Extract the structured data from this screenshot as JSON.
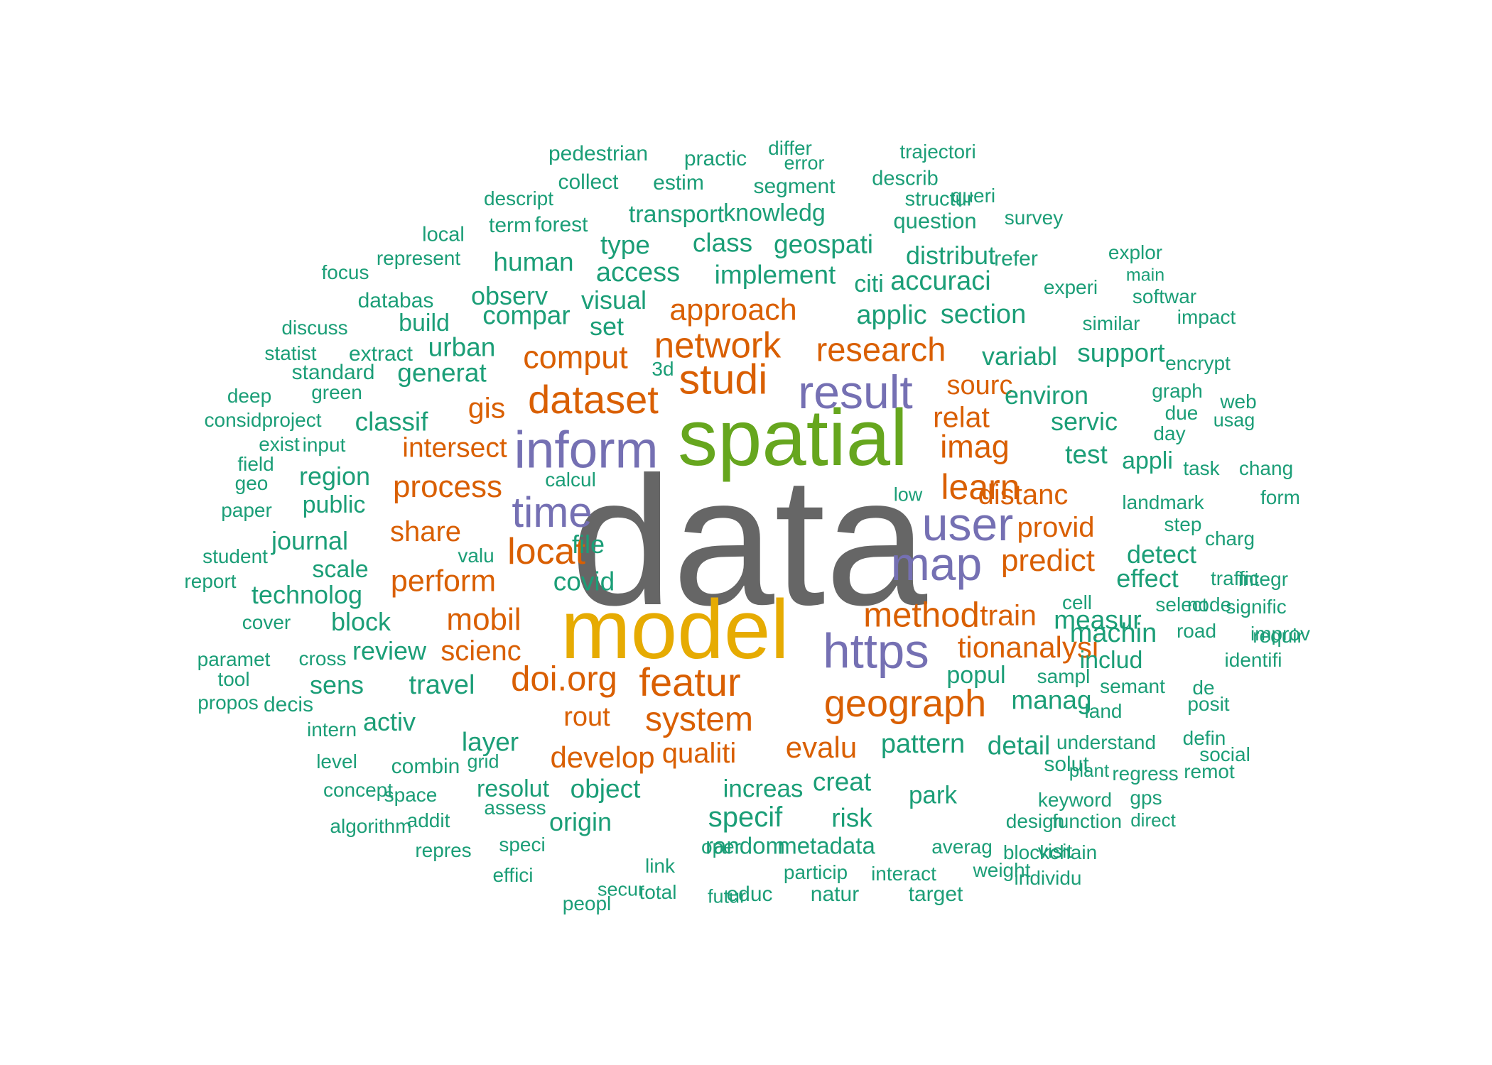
{
  "colors": {
    "gray": "#666666",
    "green": "#66a61e",
    "gold": "#e6ab02",
    "purple": "#7570b3",
    "orange": "#d95f02",
    "teal": "#1b9e77"
  },
  "words": [
    {
      "text": "data",
      "color": "gray"
    },
    {
      "text": "spatial",
      "color": "green"
    },
    {
      "text": "model",
      "color": "gold"
    },
    {
      "text": "inform",
      "color": "purple"
    },
    {
      "text": "result",
      "color": "purple"
    },
    {
      "text": "user",
      "color": "purple"
    },
    {
      "text": "map",
      "color": "purple"
    },
    {
      "text": "https",
      "color": "purple"
    },
    {
      "text": "time",
      "color": "purple"
    },
    {
      "text": "dataset",
      "color": "orange"
    },
    {
      "text": "studi",
      "color": "orange"
    },
    {
      "text": "network",
      "color": "orange"
    },
    {
      "text": "research",
      "color": "orange"
    },
    {
      "text": "approach",
      "color": "orange"
    },
    {
      "text": "comput",
      "color": "orange"
    },
    {
      "text": "gis",
      "color": "orange"
    },
    {
      "text": "intersect",
      "color": "orange"
    },
    {
      "text": "process",
      "color": "orange"
    },
    {
      "text": "learn",
      "color": "orange"
    },
    {
      "text": "imag",
      "color": "orange"
    },
    {
      "text": "relat",
      "color": "orange"
    },
    {
      "text": "sourc",
      "color": "orange"
    },
    {
      "text": "distanc",
      "color": "orange"
    },
    {
      "text": "provid",
      "color": "orange"
    },
    {
      "text": "predict",
      "color": "orange"
    },
    {
      "text": "locat",
      "color": "orange"
    },
    {
      "text": "share",
      "color": "orange"
    },
    {
      "text": "perform",
      "color": "orange"
    },
    {
      "text": "method",
      "color": "orange"
    },
    {
      "text": "train",
      "color": "orange"
    },
    {
      "text": "tionanalysi",
      "color": "orange"
    },
    {
      "text": "mobil",
      "color": "orange"
    },
    {
      "text": "scienc",
      "color": "orange"
    },
    {
      "text": "doi.org",
      "color": "orange"
    },
    {
      "text": "featur",
      "color": "orange"
    },
    {
      "text": "geograph",
      "color": "orange"
    },
    {
      "text": "system",
      "color": "orange"
    },
    {
      "text": "rout",
      "color": "orange"
    },
    {
      "text": "develop",
      "color": "orange"
    },
    {
      "text": "qualiti",
      "color": "orange"
    },
    {
      "text": "evalu",
      "color": "orange"
    },
    {
      "text": "pedestrian",
      "color": "teal"
    },
    {
      "text": "practic",
      "color": "teal"
    },
    {
      "text": "differ",
      "color": "teal"
    },
    {
      "text": "error",
      "color": "teal"
    },
    {
      "text": "trajectori",
      "color": "teal"
    },
    {
      "text": "collect",
      "color": "teal"
    },
    {
      "text": "estim",
      "color": "teal"
    },
    {
      "text": "segment",
      "color": "teal"
    },
    {
      "text": "describ",
      "color": "teal"
    },
    {
      "text": "descript",
      "color": "teal"
    },
    {
      "text": "structur",
      "color": "teal"
    },
    {
      "text": "queri",
      "color": "teal"
    },
    {
      "text": "transport",
      "color": "teal"
    },
    {
      "text": "knowledg",
      "color": "teal"
    },
    {
      "text": "question",
      "color": "teal"
    },
    {
      "text": "survey",
      "color": "teal"
    },
    {
      "text": "local",
      "color": "teal"
    },
    {
      "text": "term",
      "color": "teal"
    },
    {
      "text": "forest",
      "color": "teal"
    },
    {
      "text": "class",
      "color": "teal"
    },
    {
      "text": "geospati",
      "color": "teal"
    },
    {
      "text": "type",
      "color": "teal"
    },
    {
      "text": "distribut",
      "color": "teal"
    },
    {
      "text": "refer",
      "color": "teal"
    },
    {
      "text": "explor",
      "color": "teal"
    },
    {
      "text": "represent",
      "color": "teal"
    },
    {
      "text": "human",
      "color": "teal"
    },
    {
      "text": "access",
      "color": "teal"
    },
    {
      "text": "implement",
      "color": "teal"
    },
    {
      "text": "citi",
      "color": "teal"
    },
    {
      "text": "accuraci",
      "color": "teal"
    },
    {
      "text": "experi",
      "color": "teal"
    },
    {
      "text": "main",
      "color": "teal"
    },
    {
      "text": "focus",
      "color": "teal"
    },
    {
      "text": "databas",
      "color": "teal"
    },
    {
      "text": "observ",
      "color": "teal"
    },
    {
      "text": "visual",
      "color": "teal"
    },
    {
      "text": "softwar",
      "color": "teal"
    },
    {
      "text": "impact",
      "color": "teal"
    },
    {
      "text": "discuss",
      "color": "teal"
    },
    {
      "text": "build",
      "color": "teal"
    },
    {
      "text": "compar",
      "color": "teal"
    },
    {
      "text": "set",
      "color": "teal"
    },
    {
      "text": "applic",
      "color": "teal"
    },
    {
      "text": "section",
      "color": "teal"
    },
    {
      "text": "similar",
      "color": "teal"
    },
    {
      "text": "statist",
      "color": "teal"
    },
    {
      "text": "extract",
      "color": "teal"
    },
    {
      "text": "urban",
      "color": "teal"
    },
    {
      "text": "variabl",
      "color": "teal"
    },
    {
      "text": "support",
      "color": "teal"
    },
    {
      "text": "encrypt",
      "color": "teal"
    },
    {
      "text": "standard",
      "color": "teal"
    },
    {
      "text": "generat",
      "color": "teal"
    },
    {
      "text": "3d",
      "color": "teal"
    },
    {
      "text": "graph",
      "color": "teal"
    },
    {
      "text": "web",
      "color": "teal"
    },
    {
      "text": "deep",
      "color": "teal"
    },
    {
      "text": "green",
      "color": "teal"
    },
    {
      "text": "environ",
      "color": "teal"
    },
    {
      "text": "due",
      "color": "teal"
    },
    {
      "text": "usag",
      "color": "teal"
    },
    {
      "text": "considproject",
      "color": "teal"
    },
    {
      "text": "classif",
      "color": "teal"
    },
    {
      "text": "servic",
      "color": "teal"
    },
    {
      "text": "day",
      "color": "teal"
    },
    {
      "text": "exist",
      "color": "teal"
    },
    {
      "text": "input",
      "color": "teal"
    },
    {
      "text": "test",
      "color": "teal"
    },
    {
      "text": "appli",
      "color": "teal"
    },
    {
      "text": "task",
      "color": "teal"
    },
    {
      "text": "chang",
      "color": "teal"
    },
    {
      "text": "field",
      "color": "teal"
    },
    {
      "text": "region",
      "color": "teal"
    },
    {
      "text": "calcul",
      "color": "teal"
    },
    {
      "text": "geo",
      "color": "teal"
    },
    {
      "text": "low",
      "color": "teal"
    },
    {
      "text": "form",
      "color": "teal"
    },
    {
      "text": "public",
      "color": "teal"
    },
    {
      "text": "landmark",
      "color": "teal"
    },
    {
      "text": "paper",
      "color": "teal"
    },
    {
      "text": "step",
      "color": "teal"
    },
    {
      "text": "journal",
      "color": "teal"
    },
    {
      "text": "file",
      "color": "teal"
    },
    {
      "text": "charg",
      "color": "teal"
    },
    {
      "text": "student",
      "color": "teal"
    },
    {
      "text": "valu",
      "color": "teal"
    },
    {
      "text": "detect",
      "color": "teal"
    },
    {
      "text": "scale",
      "color": "teal"
    },
    {
      "text": "effect",
      "color": "teal"
    },
    {
      "text": "traffic",
      "color": "teal"
    },
    {
      "text": "report",
      "color": "teal"
    },
    {
      "text": "covid",
      "color": "teal"
    },
    {
      "text": "technolog",
      "color": "teal"
    },
    {
      "text": "integr",
      "color": "teal"
    },
    {
      "text": "cell",
      "color": "teal"
    },
    {
      "text": "node",
      "color": "teal"
    },
    {
      "text": "signific",
      "color": "teal"
    },
    {
      "text": "measur",
      "color": "teal"
    },
    {
      "text": "select",
      "color": "teal"
    },
    {
      "text": "improv",
      "color": "teal"
    },
    {
      "text": "cover",
      "color": "teal"
    },
    {
      "text": "block",
      "color": "teal"
    },
    {
      "text": "machin",
      "color": "teal"
    },
    {
      "text": "road",
      "color": "teal"
    },
    {
      "text": "requir",
      "color": "teal"
    },
    {
      "text": "paramet",
      "color": "teal"
    },
    {
      "text": "cross",
      "color": "teal"
    },
    {
      "text": "review",
      "color": "teal"
    },
    {
      "text": "includ",
      "color": "teal"
    },
    {
      "text": "identifi",
      "color": "teal"
    },
    {
      "text": "tool",
      "color": "teal"
    },
    {
      "text": "sens",
      "color": "teal"
    },
    {
      "text": "travel",
      "color": "teal"
    },
    {
      "text": "popul",
      "color": "teal"
    },
    {
      "text": "sampl",
      "color": "teal"
    },
    {
      "text": "semant",
      "color": "teal"
    },
    {
      "text": "de",
      "color": "teal"
    },
    {
      "text": "propos",
      "color": "teal"
    },
    {
      "text": "decis",
      "color": "teal"
    },
    {
      "text": "manag",
      "color": "teal"
    },
    {
      "text": "land",
      "color": "teal"
    },
    {
      "text": "posit",
      "color": "teal"
    },
    {
      "text": "intern",
      "color": "teal"
    },
    {
      "text": "activ",
      "color": "teal"
    },
    {
      "text": "layer",
      "color": "teal"
    },
    {
      "text": "pattern",
      "color": "teal"
    },
    {
      "text": "detail",
      "color": "teal"
    },
    {
      "text": "understand",
      "color": "teal"
    },
    {
      "text": "defin",
      "color": "teal"
    },
    {
      "text": "social",
      "color": "teal"
    },
    {
      "text": "level",
      "color": "teal"
    },
    {
      "text": "combin",
      "color": "teal"
    },
    {
      "text": "grid",
      "color": "teal"
    },
    {
      "text": "solut",
      "color": "teal"
    },
    {
      "text": "regress",
      "color": "teal"
    },
    {
      "text": "remot",
      "color": "teal"
    },
    {
      "text": "concept",
      "color": "teal"
    },
    {
      "text": "space",
      "color": "teal"
    },
    {
      "text": "resolut",
      "color": "teal"
    },
    {
      "text": "object",
      "color": "teal"
    },
    {
      "text": "increas",
      "color": "teal"
    },
    {
      "text": "creat",
      "color": "teal"
    },
    {
      "text": "park",
      "color": "teal"
    },
    {
      "text": "keyword",
      "color": "teal"
    },
    {
      "text": "plant",
      "color": "teal"
    },
    {
      "text": "gps",
      "color": "teal"
    },
    {
      "text": "direct",
      "color": "teal"
    },
    {
      "text": "algorithm",
      "color": "teal"
    },
    {
      "text": "addit",
      "color": "teal"
    },
    {
      "text": "assess",
      "color": "teal"
    },
    {
      "text": "origin",
      "color": "teal"
    },
    {
      "text": "specif",
      "color": "teal"
    },
    {
      "text": "risk",
      "color": "teal"
    },
    {
      "text": "design",
      "color": "teal"
    },
    {
      "text": "function",
      "color": "teal"
    },
    {
      "text": "repres",
      "color": "teal"
    },
    {
      "text": "speci",
      "color": "teal"
    },
    {
      "text": "random",
      "color": "teal"
    },
    {
      "text": "metadata",
      "color": "teal"
    },
    {
      "text": "averag",
      "color": "teal"
    },
    {
      "text": "blockchain",
      "color": "teal"
    },
    {
      "text": "individu",
      "color": "teal"
    },
    {
      "text": "visit",
      "color": "teal"
    },
    {
      "text": "oper",
      "color": "teal"
    },
    {
      "text": "effici",
      "color": "teal"
    },
    {
      "text": "link",
      "color": "teal"
    },
    {
      "text": "particip",
      "color": "teal"
    },
    {
      "text": "interact",
      "color": "teal"
    },
    {
      "text": "weight",
      "color": "teal"
    },
    {
      "text": "secur",
      "color": "teal"
    },
    {
      "text": "total",
      "color": "teal"
    },
    {
      "text": "educ",
      "color": "teal"
    },
    {
      "text": "natur",
      "color": "teal"
    },
    {
      "text": "target",
      "color": "teal"
    },
    {
      "text": "peopl",
      "color": "teal"
    },
    {
      "text": "futur",
      "color": "teal"
    }
  ]
}
